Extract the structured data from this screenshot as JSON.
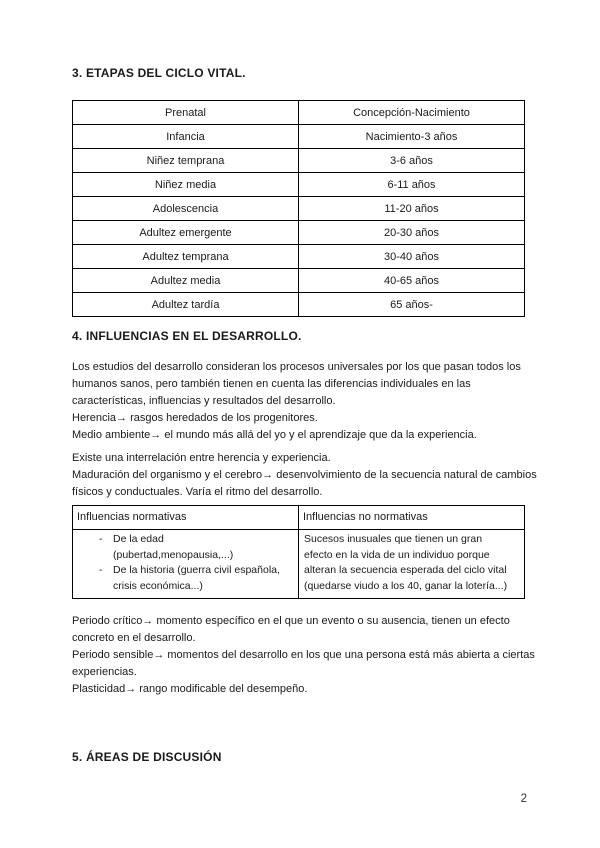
{
  "page": {
    "number": "2"
  },
  "list_marker": "-",
  "etapas": {
    "heading": "3. ETAPAS DEL CICLO VITAL.",
    "table_rows": [
      {
        "stage": "Prenatal",
        "range": "Concepción-Nacimiento"
      },
      {
        "stage": "Infancia",
        "range": "Nacimiento-3 años"
      },
      {
        "stage": "Niñez temprana",
        "range": "3-6 años"
      },
      {
        "stage": "Niñez media",
        "range": "6-11 años"
      },
      {
        "stage": "Adolescencia",
        "range": "11-20 años"
      },
      {
        "stage": "Adultez emergente",
        "range": "20-30 años"
      },
      {
        "stage": "Adultez temprana",
        "range": "30-40 años"
      },
      {
        "stage": "Adultez media",
        "range": "40-65 años"
      },
      {
        "stage": "Adultez tardía",
        "range": "65 años-"
      }
    ]
  },
  "influencias": {
    "heading": "4. INFLUENCIAS EN EL DESARROLLO.",
    "intro": "Los estudios del desarrollo consideran los procesos universales por los que pasan todos los humanos sanos, pero también tienen en cuenta las diferencias individuales en las características, influencias y resultados del desarrollo.",
    "herencia": "Herencia→ rasgos heredados de los progenitores.",
    "medio_ambiente": "Medio ambiente→ el mundo más allá del yo y el aprendizaje que da la experiencia.",
    "interrelacion": "Existe una interrelación entre herencia y experiencia.",
    "maduracion": "Maduración del organismo y el cerebro→ desenvolvimiento de la secuencia natural de cambios físicos y conductuales. Varía el ritmo del desarrollo.",
    "table": {
      "col1_header": "Influencias normativas",
      "col2_header": "Influencias no normativas",
      "normativas_items": [
        {
          "lines": [
            "De la edad",
            "(pubertad,menopausia,...)"
          ]
        },
        {
          "lines": [
            "De la historia (guerra civil española,",
            "crisis económica...)"
          ]
        }
      ],
      "no_normativas_lines": [
        "Sucesos inusuales que tienen un gran",
        "efecto en la vida de un individuo porque",
        "alteran la secuencia esperada del ciclo vital",
        "(quedarse viudo a los 40, ganar la lotería...)"
      ]
    },
    "periodo_critico": "Periodo crítico→ momento específico en el que un evento o su ausencia, tienen un efecto concreto en el desarrollo.",
    "periodo_sensible": "Periodo sensible→ momentos del desarrollo en los que una persona está más abierta a ciertas experiencias.",
    "plasticidad": "Plasticidad→ rango modificable del desempeño."
  },
  "areas": {
    "heading": "5. ÁREAS DE DISCUSIÓN"
  }
}
